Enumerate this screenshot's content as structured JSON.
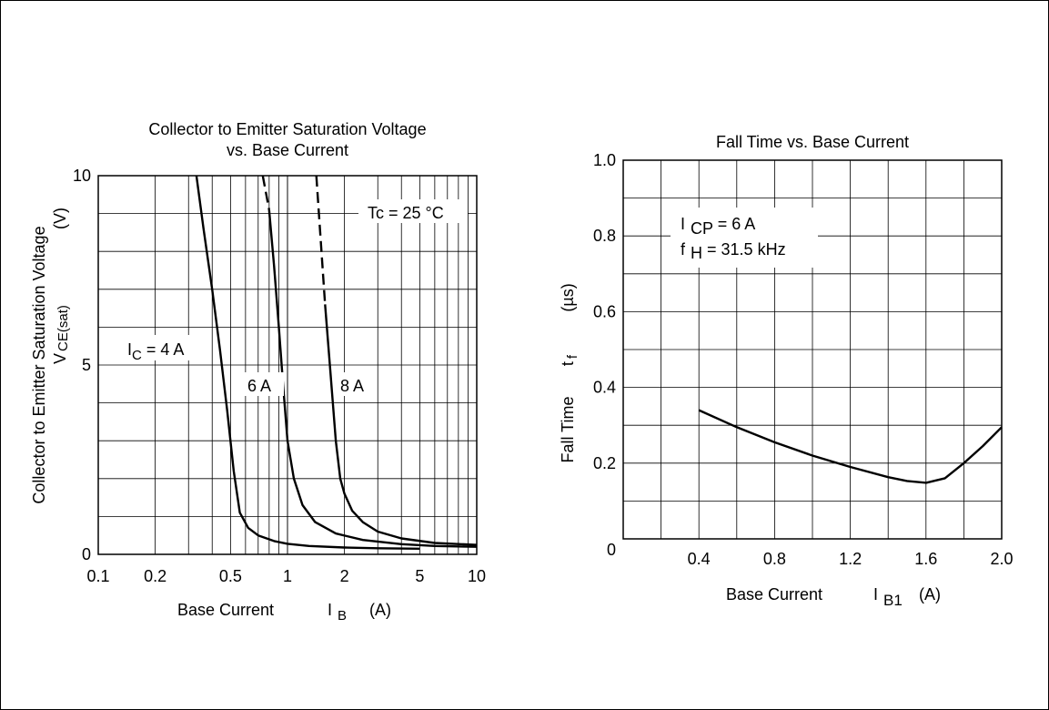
{
  "chart_data": [
    {
      "type": "line",
      "title": "Collector to Emitter Saturation Voltage vs. Base Current",
      "title_lines": [
        "Collector to Emitter Saturation Voltage",
        "vs. Base Current"
      ],
      "xlabel": "Base Current",
      "xlabel_symbol": "I",
      "xlabel_sub": "B",
      "xlabel_unit": "(A)",
      "ylabel": "Collector to Emitter Saturation Voltage",
      "ylabel_symbol": "V",
      "ylabel_sub": "CE(sat)",
      "ylabel_unit": "(V)",
      "x_scale": "log",
      "xlim": [
        0.1,
        10
      ],
      "ylim": [
        0,
        10
      ],
      "x_ticks": [
        0.1,
        0.2,
        0.5,
        1,
        2,
        5,
        10
      ],
      "x_tick_labels": [
        "0.1",
        "0.2",
        "0.5",
        "1",
        "2",
        "5",
        "10"
      ],
      "y_ticks": [
        0,
        5,
        10
      ],
      "y_tick_labels": [
        "0",
        "5",
        "10"
      ],
      "grid": true,
      "condition": "Tc = 25 °C",
      "series": [
        {
          "name": "I C = 4 A",
          "label_prefix": "I",
          "label_sub": "C",
          "label_suffix": " = 4 A",
          "x": [
            0.33,
            0.36,
            0.4,
            0.44,
            0.48,
            0.52,
            0.56,
            0.62,
            0.7,
            0.85,
            1.0,
            1.3,
            2.0,
            3.0,
            5.0
          ],
          "y": [
            10.0,
            8.6,
            7.0,
            5.4,
            3.8,
            2.2,
            1.1,
            0.7,
            0.5,
            0.35,
            0.28,
            0.22,
            0.18,
            0.16,
            0.15
          ]
        },
        {
          "name": "6 A",
          "label": "6 A",
          "dashed_x": [
            0.74,
            0.8
          ],
          "dashed_y": [
            10.0,
            9.1
          ],
          "x": [
            0.8,
            0.85,
            0.9,
            0.95,
            1.0,
            1.08,
            1.2,
            1.4,
            1.8,
            2.5,
            4.0,
            6.0,
            10.0
          ],
          "y": [
            9.1,
            7.6,
            6.0,
            4.4,
            3.0,
            2.0,
            1.3,
            0.85,
            0.55,
            0.38,
            0.27,
            0.22,
            0.2
          ]
        },
        {
          "name": "8 A",
          "label": "8 A",
          "dashed_x": [
            1.42,
            1.58
          ],
          "dashed_y": [
            10.0,
            6.6
          ],
          "x": [
            1.58,
            1.68,
            1.8,
            1.9,
            2.0,
            2.2,
            2.5,
            3.0,
            4.0,
            6.0,
            10.0
          ],
          "y": [
            6.6,
            4.9,
            3.0,
            2.0,
            1.6,
            1.15,
            0.85,
            0.6,
            0.42,
            0.3,
            0.25
          ]
        }
      ]
    },
    {
      "type": "line",
      "title": "Fall Time vs. Base Current",
      "xlabel": "Base Current",
      "xlabel_symbol": "I",
      "xlabel_sub": "B1",
      "xlabel_unit": "(A)",
      "ylabel": "Fall Time",
      "ylabel_symbol": "t",
      "ylabel_sub": "f",
      "ylabel_unit": "(µs)",
      "xlim": [
        0,
        2.0
      ],
      "ylim": [
        0,
        1.0
      ],
      "x_ticks": [
        0.4,
        0.8,
        1.2,
        1.6,
        2.0
      ],
      "x_tick_labels": [
        "0.4",
        "0.8",
        "1.2",
        "1.6",
        "2.0"
      ],
      "y_ticks": [
        0.2,
        0.4,
        0.6,
        0.8,
        1.0
      ],
      "y_tick_labels": [
        "0.2",
        "0.4",
        "0.6",
        "0.8",
        "1.0"
      ],
      "origin_label": "0",
      "grid": true,
      "conditions": [
        {
          "prefix": "I",
          "sub": "CP",
          "suffix": " = 6 A"
        },
        {
          "prefix": "f",
          "sub": "H",
          "suffix": " = 31.5 kHz"
        }
      ],
      "series": [
        {
          "name": "t f",
          "x": [
            0.4,
            0.6,
            0.8,
            1.0,
            1.2,
            1.4,
            1.5,
            1.6,
            1.7,
            1.8,
            1.9,
            2.0
          ],
          "y": [
            0.34,
            0.295,
            0.255,
            0.22,
            0.19,
            0.163,
            0.153,
            0.148,
            0.16,
            0.2,
            0.245,
            0.295
          ]
        }
      ]
    }
  ]
}
